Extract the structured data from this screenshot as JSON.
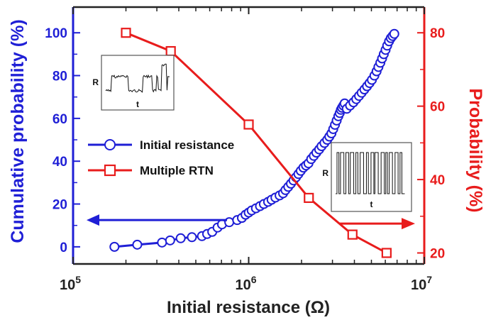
{
  "chart_data": {
    "type": "scatter",
    "xlabel": "Initial resistance (Ω)",
    "ylabel_left": "Cumulative probability (%)",
    "ylabel_right": "Probability (%)",
    "x_scale": "log",
    "xlim": [
      100000,
      10000000
    ],
    "ylim_left": [
      -8,
      112
    ],
    "ylim_right": [
      17,
      87
    ],
    "x_ticks": [
      {
        "value": 100000,
        "base": "10",
        "exp": "5"
      },
      {
        "value": 1000000,
        "base": "10",
        "exp": "6"
      },
      {
        "value": 10000000,
        "base": "10",
        "exp": "7"
      }
    ],
    "y_ticks_left": [
      "0",
      "20",
      "40",
      "60",
      "80",
      "100"
    ],
    "y_ticks_right": [
      "20",
      "40",
      "60",
      "80"
    ],
    "legend_position": "center-left",
    "series": [
      {
        "name": "Initial resistance",
        "axis": "left",
        "marker": "circle",
        "color": "#1f1fd6",
        "points": [
          [
            172000,
            0
          ],
          [
            232000,
            1
          ],
          [
            321000,
            2
          ],
          [
            357000,
            3
          ],
          [
            410000,
            4
          ],
          [
            475000,
            4.5
          ],
          [
            542000,
            5
          ],
          [
            580000,
            6
          ],
          [
            620000,
            7
          ],
          [
            665000,
            9
          ],
          [
            705000,
            10.5
          ],
          [
            775000,
            11.5
          ],
          [
            860000,
            12.5
          ],
          [
            915000,
            13.5
          ],
          [
            960000,
            15
          ],
          [
            1000000,
            16
          ],
          [
            1040000,
            17
          ],
          [
            1100000,
            18
          ],
          [
            1160000,
            19
          ],
          [
            1220000,
            20
          ],
          [
            1290000,
            21
          ],
          [
            1350000,
            22
          ],
          [
            1420000,
            23
          ],
          [
            1500000,
            24
          ],
          [
            1570000,
            25
          ],
          [
            1620000,
            26.5
          ],
          [
            1680000,
            28
          ],
          [
            1740000,
            29.5
          ],
          [
            1800000,
            31
          ],
          [
            1860000,
            32.5
          ],
          [
            1920000,
            34
          ],
          [
            1980000,
            35.5
          ],
          [
            2050000,
            37
          ],
          [
            2120000,
            38
          ],
          [
            2190000,
            39
          ],
          [
            2270000,
            41
          ],
          [
            2350000,
            42.5
          ],
          [
            2430000,
            44
          ],
          [
            2520000,
            45.5
          ],
          [
            2600000,
            47
          ],
          [
            2700000,
            48.5
          ],
          [
            2800000,
            50
          ],
          [
            2880000,
            51.5
          ],
          [
            2960000,
            53
          ],
          [
            3030000,
            55
          ],
          [
            3100000,
            57
          ],
          [
            3170000,
            59
          ],
          [
            3240000,
            61
          ],
          [
            3300000,
            62.5
          ],
          [
            3350000,
            64
          ],
          [
            3400000,
            65
          ],
          [
            3460000,
            66
          ],
          [
            3520000,
            67
          ],
          [
            3620000,
            64.5
          ],
          [
            3780000,
            66
          ],
          [
            3950000,
            67.5
          ],
          [
            4100000,
            69
          ],
          [
            4250000,
            70.5
          ],
          [
            4400000,
            72
          ],
          [
            4560000,
            73.5
          ],
          [
            4720000,
            75
          ],
          [
            4880000,
            76.5
          ],
          [
            5030000,
            78
          ],
          [
            5200000,
            80
          ],
          [
            5350000,
            82
          ],
          [
            5480000,
            84
          ],
          [
            5620000,
            86
          ],
          [
            5750000,
            88
          ],
          [
            5880000,
            90
          ],
          [
            6020000,
            92
          ],
          [
            6150000,
            94
          ],
          [
            6300000,
            96
          ],
          [
            6450000,
            97.5
          ],
          [
            6600000,
            98.5
          ],
          [
            6750000,
            99.5
          ]
        ]
      },
      {
        "name": "Multiple RTN",
        "axis": "right",
        "marker": "square",
        "color": "#e81c1c",
        "points": [
          [
            200000,
            80
          ],
          [
            360000,
            75
          ],
          [
            1000000,
            55
          ],
          [
            2200000,
            35
          ],
          [
            3900000,
            25
          ],
          [
            6100000,
            20
          ]
        ]
      }
    ],
    "insets": [
      {
        "y_label": "R",
        "x_label": "t",
        "kind": "random-telegraph-noise"
      },
      {
        "y_label": "R",
        "x_label": "t",
        "kind": "multiple-switching"
      }
    ],
    "colors": {
      "left_axis": "#1f1fd6",
      "right_axis": "#e81c1c",
      "frame": "#222222"
    }
  }
}
